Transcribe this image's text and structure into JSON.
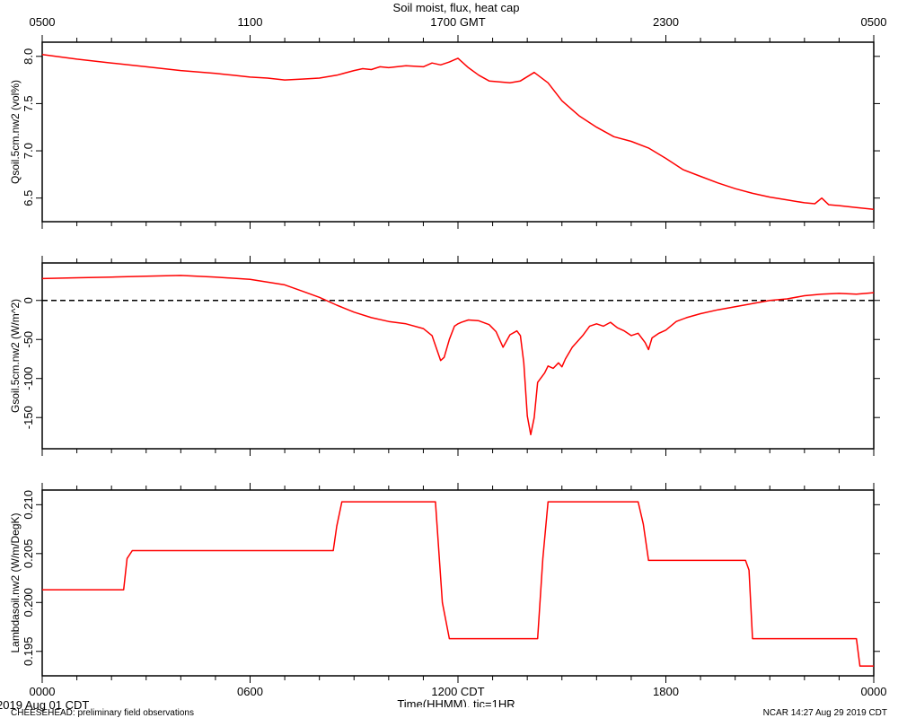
{
  "title": "Soil moist, flux, heat cap",
  "top_axis": {
    "ticks": [
      {
        "label": "0500",
        "hour": 0
      },
      {
        "label": "1100",
        "hour": 6
      },
      {
        "label": "1700 GMT",
        "hour": 12
      },
      {
        "label": "2300",
        "hour": 18
      },
      {
        "label": "0500",
        "hour": 24
      }
    ]
  },
  "bottom_axis": {
    "ticks": [
      {
        "label": "0000",
        "hour": 0
      },
      {
        "label": "0600",
        "hour": 6
      },
      {
        "label": "1200 CDT",
        "hour": 12
      },
      {
        "label": "1800",
        "hour": 18
      },
      {
        "label": "0000",
        "hour": 24
      }
    ],
    "xlabel": "Time(HHMM), tic=1HR",
    "date_label": "2019 Aug 01 CDT"
  },
  "footer": {
    "left": "CHEESEHEAD: preliminary field observations",
    "right": "NCAR 14:27 Aug 29 2019 CDT"
  },
  "colors": {
    "series": "#ff0000",
    "axis": "#000000",
    "zero_line": "#000000"
  },
  "chart_data": [
    {
      "type": "line",
      "ylabel": "Qsoil.5cm.nw2 (vol%)",
      "xlim": [
        0,
        24
      ],
      "ylim": [
        6.25,
        8.15
      ],
      "yticks": [
        {
          "label": "6.5",
          "value": 6.5
        },
        {
          "label": "7.0",
          "value": 7.0
        },
        {
          "label": "7.5",
          "value": 7.5
        },
        {
          "label": "8.0",
          "value": 8.0
        }
      ],
      "series": [
        {
          "x": [
            0,
            1,
            2,
            3,
            4,
            5,
            5.5,
            6,
            6.5,
            7,
            7.5,
            8,
            8.5,
            9,
            9.25,
            9.5,
            9.75,
            10,
            10.5,
            11,
            11.25,
            11.5,
            11.75,
            12,
            12.3,
            12.6,
            12.9,
            13.2,
            13.5,
            13.8,
            14.2,
            14.6,
            15,
            15.5,
            16,
            16.5,
            17,
            17.5,
            18,
            18.5,
            19,
            19.5,
            20,
            20.5,
            21,
            21.5,
            22,
            22.3,
            22.5,
            22.7,
            23,
            23.5,
            24
          ],
          "y": [
            8.02,
            7.97,
            7.93,
            7.89,
            7.85,
            7.82,
            7.8,
            7.78,
            7.77,
            7.75,
            7.76,
            7.77,
            7.8,
            7.85,
            7.87,
            7.86,
            7.89,
            7.88,
            7.9,
            7.89,
            7.93,
            7.91,
            7.94,
            7.98,
            7.88,
            7.8,
            7.74,
            7.73,
            7.72,
            7.74,
            7.83,
            7.72,
            7.53,
            7.37,
            7.25,
            7.15,
            7.1,
            7.03,
            6.92,
            6.8,
            6.73,
            6.66,
            6.6,
            6.55,
            6.51,
            6.48,
            6.45,
            6.44,
            6.5,
            6.43,
            6.42,
            6.4,
            6.38
          ]
        }
      ]
    },
    {
      "type": "line",
      "ylabel": "Gsoil.5cm.nw2 (W/m^2)",
      "xlim": [
        0,
        24
      ],
      "ylim": [
        -190,
        48
      ],
      "zero_line": true,
      "yticks": [
        {
          "label": "-150",
          "value": -150
        },
        {
          "label": "-100",
          "value": -100
        },
        {
          "label": "-50",
          "value": -50
        },
        {
          "label": "0",
          "value": 0
        }
      ],
      "series": [
        {
          "x": [
            0,
            1,
            2,
            3,
            4,
            5,
            6,
            7,
            7.5,
            8,
            8.5,
            9,
            9.5,
            10,
            10.5,
            11,
            11.25,
            11.5,
            11.6,
            11.75,
            11.9,
            12,
            12.1,
            12.3,
            12.6,
            12.9,
            13.1,
            13.3,
            13.5,
            13.7,
            13.8,
            13.9,
            14,
            14.1,
            14.2,
            14.3,
            14.5,
            14.6,
            14.75,
            14.9,
            15,
            15.1,
            15.3,
            15.6,
            15.8,
            16,
            16.2,
            16.4,
            16.6,
            16.8,
            17,
            17.2,
            17.4,
            17.5,
            17.6,
            17.8,
            18,
            18.3,
            18.6,
            19,
            19.5,
            20,
            20.5,
            21,
            21.5,
            22,
            22.5,
            23,
            23.5,
            24
          ],
          "y": [
            28,
            29,
            30,
            31,
            32,
            30,
            27,
            20,
            12,
            4,
            -6,
            -15,
            -22,
            -27,
            -30,
            -36,
            -45,
            -77,
            -73,
            -50,
            -33,
            -30,
            -28,
            -25,
            -26,
            -31,
            -40,
            -60,
            -44,
            -39,
            -45,
            -80,
            -148,
            -172,
            -150,
            -105,
            -93,
            -84,
            -87,
            -80,
            -85,
            -75,
            -60,
            -45,
            -33,
            -30,
            -33,
            -28,
            -35,
            -39,
            -45,
            -42,
            -54,
            -63,
            -48,
            -42,
            -38,
            -27,
            -22,
            -17,
            -12,
            -8,
            -4,
            0,
            2,
            6,
            8,
            9,
            8,
            10
          ]
        }
      ]
    },
    {
      "type": "line",
      "ylabel": "Lambdasoil.nw2 (W/m/DegK)",
      "xlim": [
        0,
        24
      ],
      "ylim": [
        0.1925,
        0.2115
      ],
      "yticks": [
        {
          "label": "0.195",
          "value": 0.195
        },
        {
          "label": "0.200",
          "value": 0.2
        },
        {
          "label": "0.205",
          "value": 0.205
        },
        {
          "label": "0.210",
          "value": 0.21
        }
      ],
      "series": [
        {
          "x": [
            0,
            2.35,
            2.45,
            2.6,
            8.4,
            8.5,
            8.65,
            11.35,
            11.55,
            11.75,
            14.3,
            14.45,
            14.6,
            17.2,
            17.35,
            17.5,
            20.3,
            20.4,
            20.5,
            23.5,
            23.6,
            24
          ],
          "y": [
            0.2013,
            0.2013,
            0.2045,
            0.2053,
            0.2053,
            0.2078,
            0.2103,
            0.2103,
            0.2,
            0.1963,
            0.1963,
            0.2045,
            0.2103,
            0.2103,
            0.208,
            0.2043,
            0.2043,
            0.2033,
            0.1963,
            0.1963,
            0.1935,
            0.1935
          ]
        }
      ]
    }
  ]
}
